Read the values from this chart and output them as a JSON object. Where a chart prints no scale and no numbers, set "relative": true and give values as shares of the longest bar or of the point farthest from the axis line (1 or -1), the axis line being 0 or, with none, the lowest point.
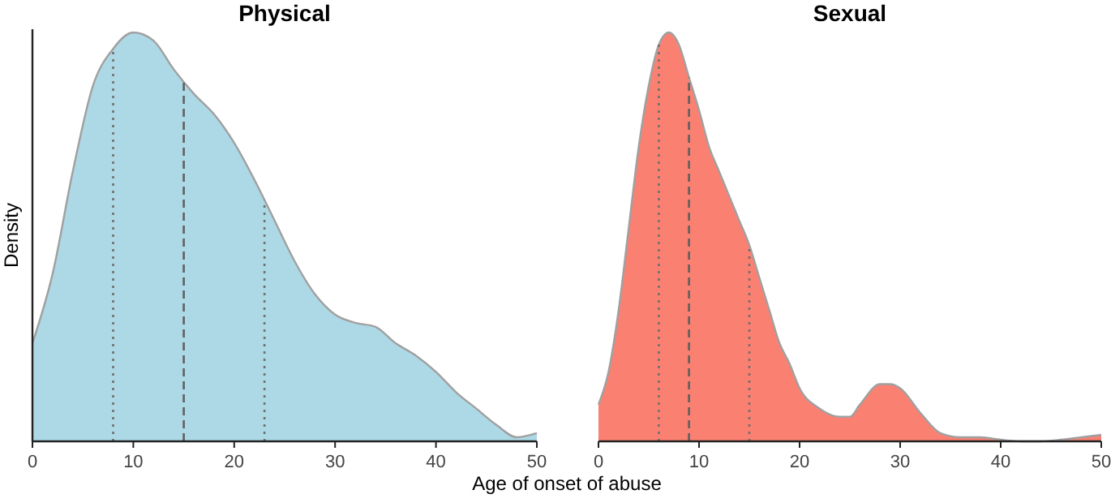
{
  "chart_data": [
    {
      "type": "area",
      "title": "Physical",
      "xlabel": "Age of onset of abuse",
      "ylabel": "Density",
      "relative": true,
      "xlim": [
        0,
        50
      ],
      "xticks": [
        0,
        10,
        20,
        30,
        40,
        50
      ],
      "x": [
        0,
        2,
        4,
        6,
        8,
        10,
        12,
        14,
        16,
        18,
        20,
        22,
        24,
        26,
        28,
        30,
        32,
        34,
        36,
        38,
        40,
        42,
        44,
        46,
        48,
        50
      ],
      "series": [
        {
          "color": "#add8e6",
          "values": [
            0.24,
            0.41,
            0.66,
            0.87,
            0.96,
            1,
            0.98,
            0.91,
            0.85,
            0.8,
            0.73,
            0.64,
            0.54,
            0.44,
            0.36,
            0.31,
            0.29,
            0.28,
            0.24,
            0.21,
            0.17,
            0.12,
            0.08,
            0.04,
            0.01,
            0.02
          ]
        }
      ],
      "ref_lines": [
        {
          "axis": "x",
          "value": 8,
          "color": "#707070",
          "line_style": "dotted"
        },
        {
          "axis": "x",
          "value": 15,
          "color": "#606060",
          "line_style": "dashed"
        },
        {
          "axis": "x",
          "value": 23,
          "color": "#707070",
          "line_style": "dotted"
        }
      ]
    },
    {
      "type": "area",
      "title": "Sexual",
      "relative": true,
      "xlim": [
        0,
        50
      ],
      "xticks": [
        0,
        10,
        20,
        30,
        40,
        50
      ],
      "x": [
        0,
        1,
        2,
        3,
        4,
        5,
        6,
        7,
        8,
        9,
        10,
        11,
        12,
        13,
        14,
        15,
        16,
        17,
        18,
        19,
        20,
        22,
        24,
        25,
        26,
        28,
        29,
        30,
        32,
        34,
        36,
        38,
        40,
        42,
        44,
        46,
        48,
        50
      ],
      "series": [
        {
          "color": "#fa8072",
          "values": [
            0.09,
            0.17,
            0.32,
            0.52,
            0.72,
            0.87,
            0.97,
            1,
            0.97,
            0.89,
            0.81,
            0.72,
            0.66,
            0.6,
            0.54,
            0.48,
            0.4,
            0.32,
            0.24,
            0.19,
            0.13,
            0.08,
            0.06,
            0.06,
            0.09,
            0.14,
            0.14,
            0.13,
            0.07,
            0.02,
            0.01,
            0.01,
            0.004,
            0,
            0,
            0.004,
            0.01,
            0.016
          ]
        }
      ],
      "ref_lines": [
        {
          "axis": "x",
          "value": 6,
          "color": "#707070",
          "line_style": "dotted"
        },
        {
          "axis": "x",
          "value": 9,
          "color": "#606060",
          "line_style": "dashed"
        },
        {
          "axis": "x",
          "value": 15,
          "color": "#707070",
          "line_style": "dotted"
        }
      ]
    }
  ]
}
